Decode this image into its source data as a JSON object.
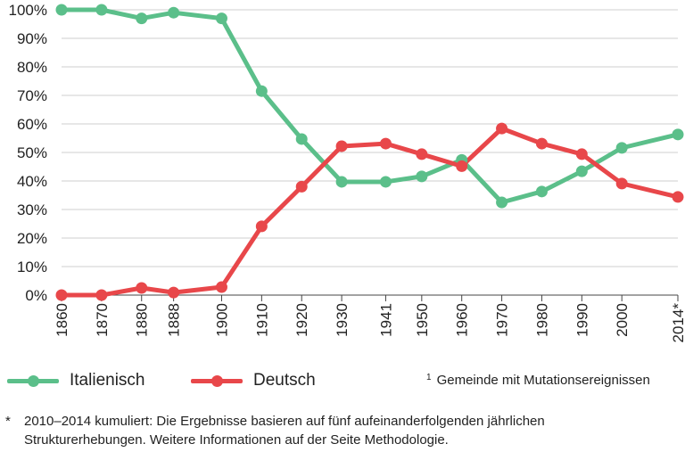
{
  "chart_data": {
    "type": "line",
    "categories": [
      "1860",
      "1870",
      "1880",
      "1888",
      "1900",
      "1910",
      "1920",
      "1930",
      "1941",
      "1950",
      "1960",
      "1970",
      "1980",
      "1990",
      "2000",
      "2014*"
    ],
    "x_years": [
      1860,
      1870,
      1880,
      1888,
      1900,
      1910,
      1920,
      1930,
      1941,
      1950,
      1960,
      1970,
      1980,
      1990,
      2000,
      2014
    ],
    "y_ticks": [
      "0%",
      "10%",
      "20%",
      "30%",
      "40%",
      "50%",
      "60%",
      "70%",
      "80%",
      "90%",
      "100%"
    ],
    "ylim": [
      0,
      100
    ],
    "grid": true,
    "series": [
      {
        "name": "Italienisch",
        "color": "#5bbf8a",
        "values": [
          100,
          100,
          97,
          99,
          97,
          71.5,
          54.7,
          39.7,
          39.7,
          41.6,
          47.4,
          32.5,
          36.3,
          43.4,
          51.6,
          56.3
        ]
      },
      {
        "name": "Deutsch",
        "color": "#e8474a",
        "values": [
          0,
          0,
          2.5,
          0.9,
          2.8,
          24.1,
          38,
          52.2,
          53.1,
          49.4,
          45.2,
          58.4,
          53.1,
          49.4,
          39.1,
          34.4
        ]
      }
    ]
  },
  "legend": {
    "italian": "Italienisch",
    "german": "Deutsch",
    "footnote_mark": "1",
    "footnote": "Gemeinde mit Mutationsereignissen"
  },
  "note": {
    "marker": "*",
    "text": "2010–2014 kumuliert: Die Ergebnisse basieren auf fünf aufeinanderfolgenden jährlichen Strukturerhebungen. Weitere Informationen auf der Seite Methodologie."
  },
  "colors": {
    "grid": "#cfcfcf",
    "axis": "#444444"
  }
}
